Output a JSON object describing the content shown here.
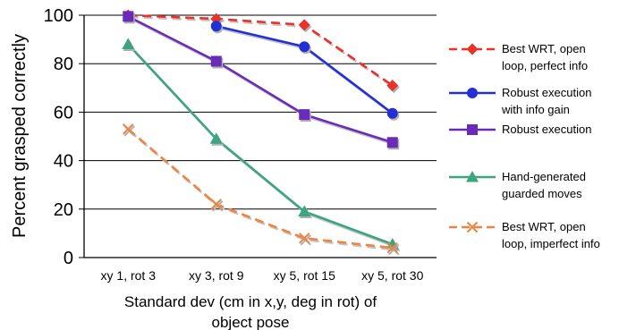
{
  "chart_data": {
    "type": "line",
    "title": "",
    "ylabel": "Percent grasped correctly",
    "xlabel_lines": [
      "Standard dev (cm in x,y, deg in rot) of",
      "object pose"
    ],
    "categories": [
      "xy 1, rot 3",
      "xy 3, rot 9",
      "xy 5, rot 15",
      "xy 5, rot 30"
    ],
    "ylim": [
      0,
      100
    ],
    "yticks": [
      0,
      20,
      40,
      60,
      80,
      100
    ],
    "grid": true,
    "legend_position": "right",
    "series": [
      {
        "name": "Best WRT, open loop, perfect info",
        "legend_lines": [
          "Best WRT, open",
          "loop, perfect info"
        ],
        "values": [
          100,
          98.5,
          96,
          71
        ],
        "color": "#e8322a",
        "marker": "diamond",
        "dashed": true
      },
      {
        "name": "Robust execution with info gain",
        "legend_lines": [
          "Robust execution",
          "with info gain"
        ],
        "values": [
          null,
          95.5,
          87,
          59.5
        ],
        "color": "#2330d6",
        "marker": "circle",
        "dashed": false
      },
      {
        "name": "Robust execution",
        "legend_lines": [
          "Robust execution"
        ],
        "values": [
          99.5,
          81,
          59,
          47.5
        ],
        "color": "#6a2bb8",
        "marker": "square",
        "dashed": false
      },
      {
        "name": "Hand-generated guarded moves",
        "legend_lines": [
          "Hand-generated",
          "guarded moves"
        ],
        "values": [
          88,
          49,
          19,
          5.5
        ],
        "color": "#3aa57e",
        "marker": "triangle",
        "dashed": false
      },
      {
        "name": "Best WRT, open loop, imperfect info",
        "legend_lines": [
          "Best WRT, open",
          "loop, imperfect info"
        ],
        "values": [
          53,
          22,
          8,
          4
        ],
        "color": "#ee8440",
        "marker": "x",
        "dashed": true
      }
    ]
  }
}
